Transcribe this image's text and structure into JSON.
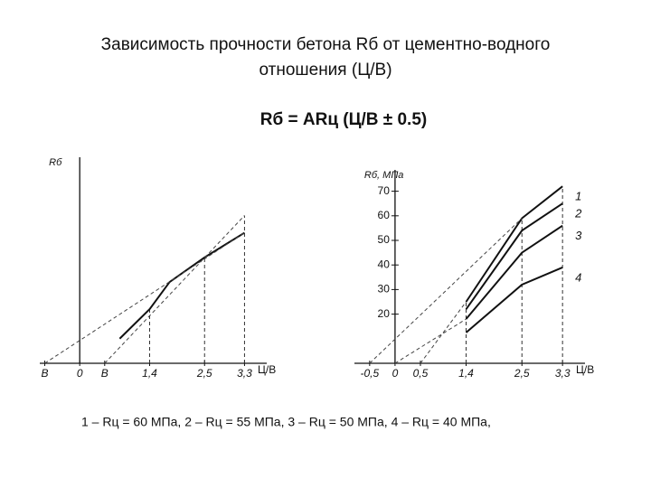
{
  "slide": {
    "title": [
      "Зависимость прочности бетона Rб от цементно-водного",
      "отношения (Ц/В)"
    ],
    "formula": "Rб = ARц (Ц/В ± 0.5)",
    "caption": "1 – Rц = 60 МПа, 2 – Rц = 55 МПа, 3 – Rц = 50 МПа, 4 – Rц = 40 МПа,"
  },
  "chart_data": [
    {
      "type": "line",
      "y_label": "Rб",
      "x_label": "Ц/В",
      "xlim": [
        -0.8,
        3.6
      ],
      "ylim": [
        0,
        80
      ],
      "xticks": [
        {
          "value": -0.7,
          "label": "В"
        },
        0,
        {
          "value": 0.5,
          "label": "В"
        },
        {
          "value": 1.4,
          "label": "1,4"
        },
        {
          "value": 2.5,
          "label": "2,5"
        },
        {
          "value": 3.3,
          "label": "3,3"
        }
      ],
      "series": [
        {
          "color": "#111111",
          "dashed": false,
          "x": [
            0.8,
            1.4,
            1.8,
            2.5,
            3.3
          ],
          "values": [
            10,
            22,
            33,
            43,
            53
          ]
        },
        {
          "color": "#444444",
          "dashed": true,
          "x": [
            -0.7,
            3.3
          ],
          "values": [
            0,
            53
          ]
        },
        {
          "color": "#444444",
          "dashed": true,
          "x": [
            0.5,
            3.3
          ],
          "values": [
            0,
            60
          ]
        }
      ]
    },
    {
      "type": "line",
      "y_label": "Rб, МПа",
      "x_label": "Ц/В",
      "xlim": [
        -0.8,
        3.6
      ],
      "ylim": [
        0,
        75
      ],
      "xticks": [
        {
          "value": -0.5,
          "label": "-0,5"
        },
        0,
        {
          "value": 0.5,
          "label": "0,5"
        },
        {
          "value": 1.4,
          "label": "1,4"
        },
        {
          "value": 2.5,
          "label": "2,5"
        },
        {
          "value": 3.3,
          "label": "3,3"
        }
      ],
      "yticks": [
        20,
        30,
        40,
        50,
        60,
        70
      ],
      "series": [
        {
          "name": "1",
          "color": "#111111",
          "dashed": false,
          "x": [
            1.4,
            2.5,
            3.3
          ],
          "values": [
            25,
            59,
            72
          ]
        },
        {
          "name": "2",
          "color": "#111111",
          "dashed": false,
          "x": [
            1.4,
            2.5,
            3.3
          ],
          "values": [
            22,
            54,
            65
          ]
        },
        {
          "name": "3",
          "color": "#111111",
          "dashed": false,
          "x": [
            1.4,
            2.5,
            3.3
          ],
          "values": [
            18,
            45,
            56
          ]
        },
        {
          "name": "4",
          "color": "#111111",
          "dashed": false,
          "x": [
            1.4,
            2.5,
            3.3
          ],
          "values": [
            12.5,
            32,
            39
          ]
        },
        {
          "color": "#444444",
          "dashed": true,
          "x": [
            -0.5,
            2.5
          ],
          "values": [
            0,
            59
          ]
        },
        {
          "color": "#444444",
          "dashed": true,
          "x": [
            0,
            1.4
          ],
          "values": [
            0,
            18
          ]
        },
        {
          "color": "#444444",
          "dashed": true,
          "x": [
            0.5,
            1.4
          ],
          "values": [
            0,
            25
          ]
        }
      ]
    }
  ]
}
